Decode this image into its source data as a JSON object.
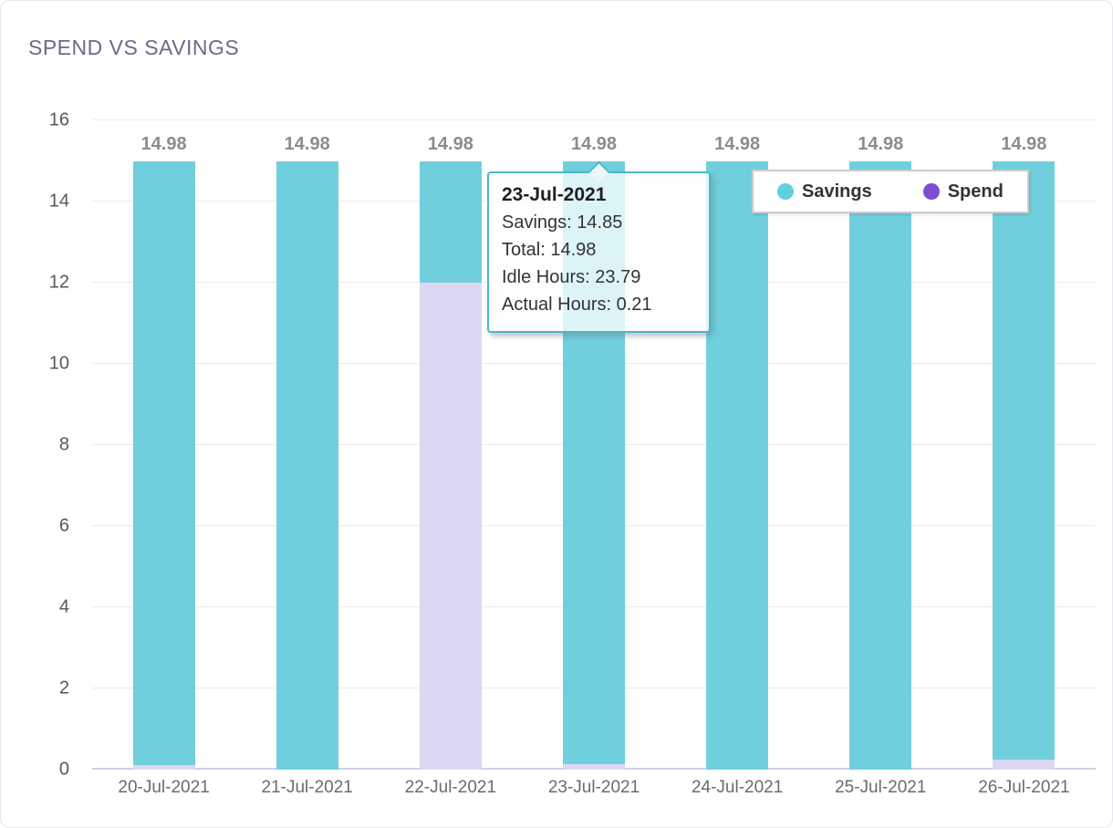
{
  "chart_data": {
    "type": "bar",
    "stacked": true,
    "title": "SPEND VS SAVINGS",
    "categories": [
      "20-Jul-2021",
      "21-Jul-2021",
      "22-Jul-2021",
      "23-Jul-2021",
      "24-Jul-2021",
      "25-Jul-2021",
      "26-Jul-2021"
    ],
    "series": [
      {
        "name": "Spend",
        "bar_color": "#ddd8f2",
        "marker_color": "#7a4fd0",
        "values": [
          0.12,
          0,
          12.0,
          0.13,
          0,
          0,
          0.25
        ]
      },
      {
        "name": "Savings",
        "bar_color": "#70cfdd",
        "marker_color": "#62cfdd",
        "values": [
          14.86,
          14.98,
          2.98,
          14.85,
          14.98,
          14.98,
          14.73
        ]
      }
    ],
    "bar_total_labels": [
      "14.98",
      "14.98",
      "14.98",
      "14.98",
      "14.98",
      "14.98",
      "14.98"
    ],
    "xlabel": "",
    "ylabel": "",
    "ylim": [
      0,
      16
    ],
    "yticks": [
      0,
      2,
      4,
      6,
      8,
      10,
      12,
      14,
      16
    ],
    "grid": "horizontal",
    "legend_position": "top-right",
    "legend": [
      {
        "label": "Savings",
        "color": "#62cfdd"
      },
      {
        "label": "Spend",
        "color": "#7a4fd0"
      }
    ],
    "accent_border_color": "#4bb7c6"
  },
  "tooltip": {
    "title": "23-Jul-2021",
    "lines": [
      {
        "label": "Savings",
        "value": "14.85"
      },
      {
        "label": "Total",
        "value": "14.98"
      },
      {
        "label": "Idle Hours",
        "value": "23.79"
      },
      {
        "label": "Actual Hours",
        "value": "0.21"
      }
    ]
  }
}
